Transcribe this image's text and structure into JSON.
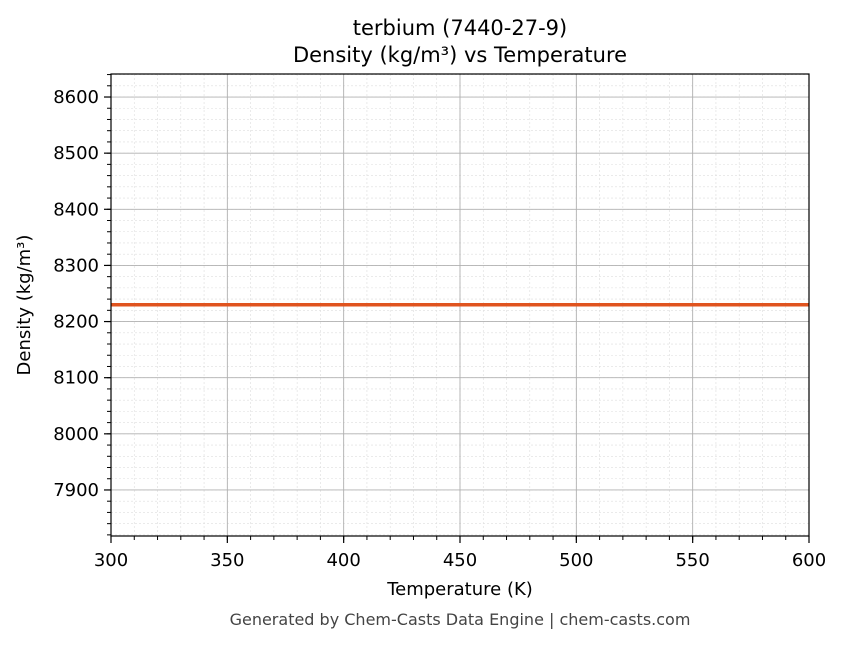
{
  "chart_data": {
    "type": "line",
    "title": "terbium (7440-27-9)",
    "subtitle": "Density (kg/m³) vs Temperature",
    "xlabel": "Temperature (K)",
    "ylabel": "Density (kg/m³)",
    "xlim": [
      300,
      600
    ],
    "ylim": [
      7818,
      8641
    ],
    "xticks": [
      300,
      350,
      400,
      450,
      500,
      550,
      600
    ],
    "yticks": [
      7900,
      8000,
      8100,
      8200,
      8300,
      8400,
      8500,
      8600
    ],
    "x_minor_step": 10,
    "y_minor_step": 20,
    "grid": true,
    "series": [
      {
        "x": [
          300,
          600
        ],
        "y": [
          8230,
          8230
        ],
        "color": "#e0541f"
      }
    ]
  },
  "footer": "Generated by Chem-Casts Data Engine | chem-casts.com"
}
